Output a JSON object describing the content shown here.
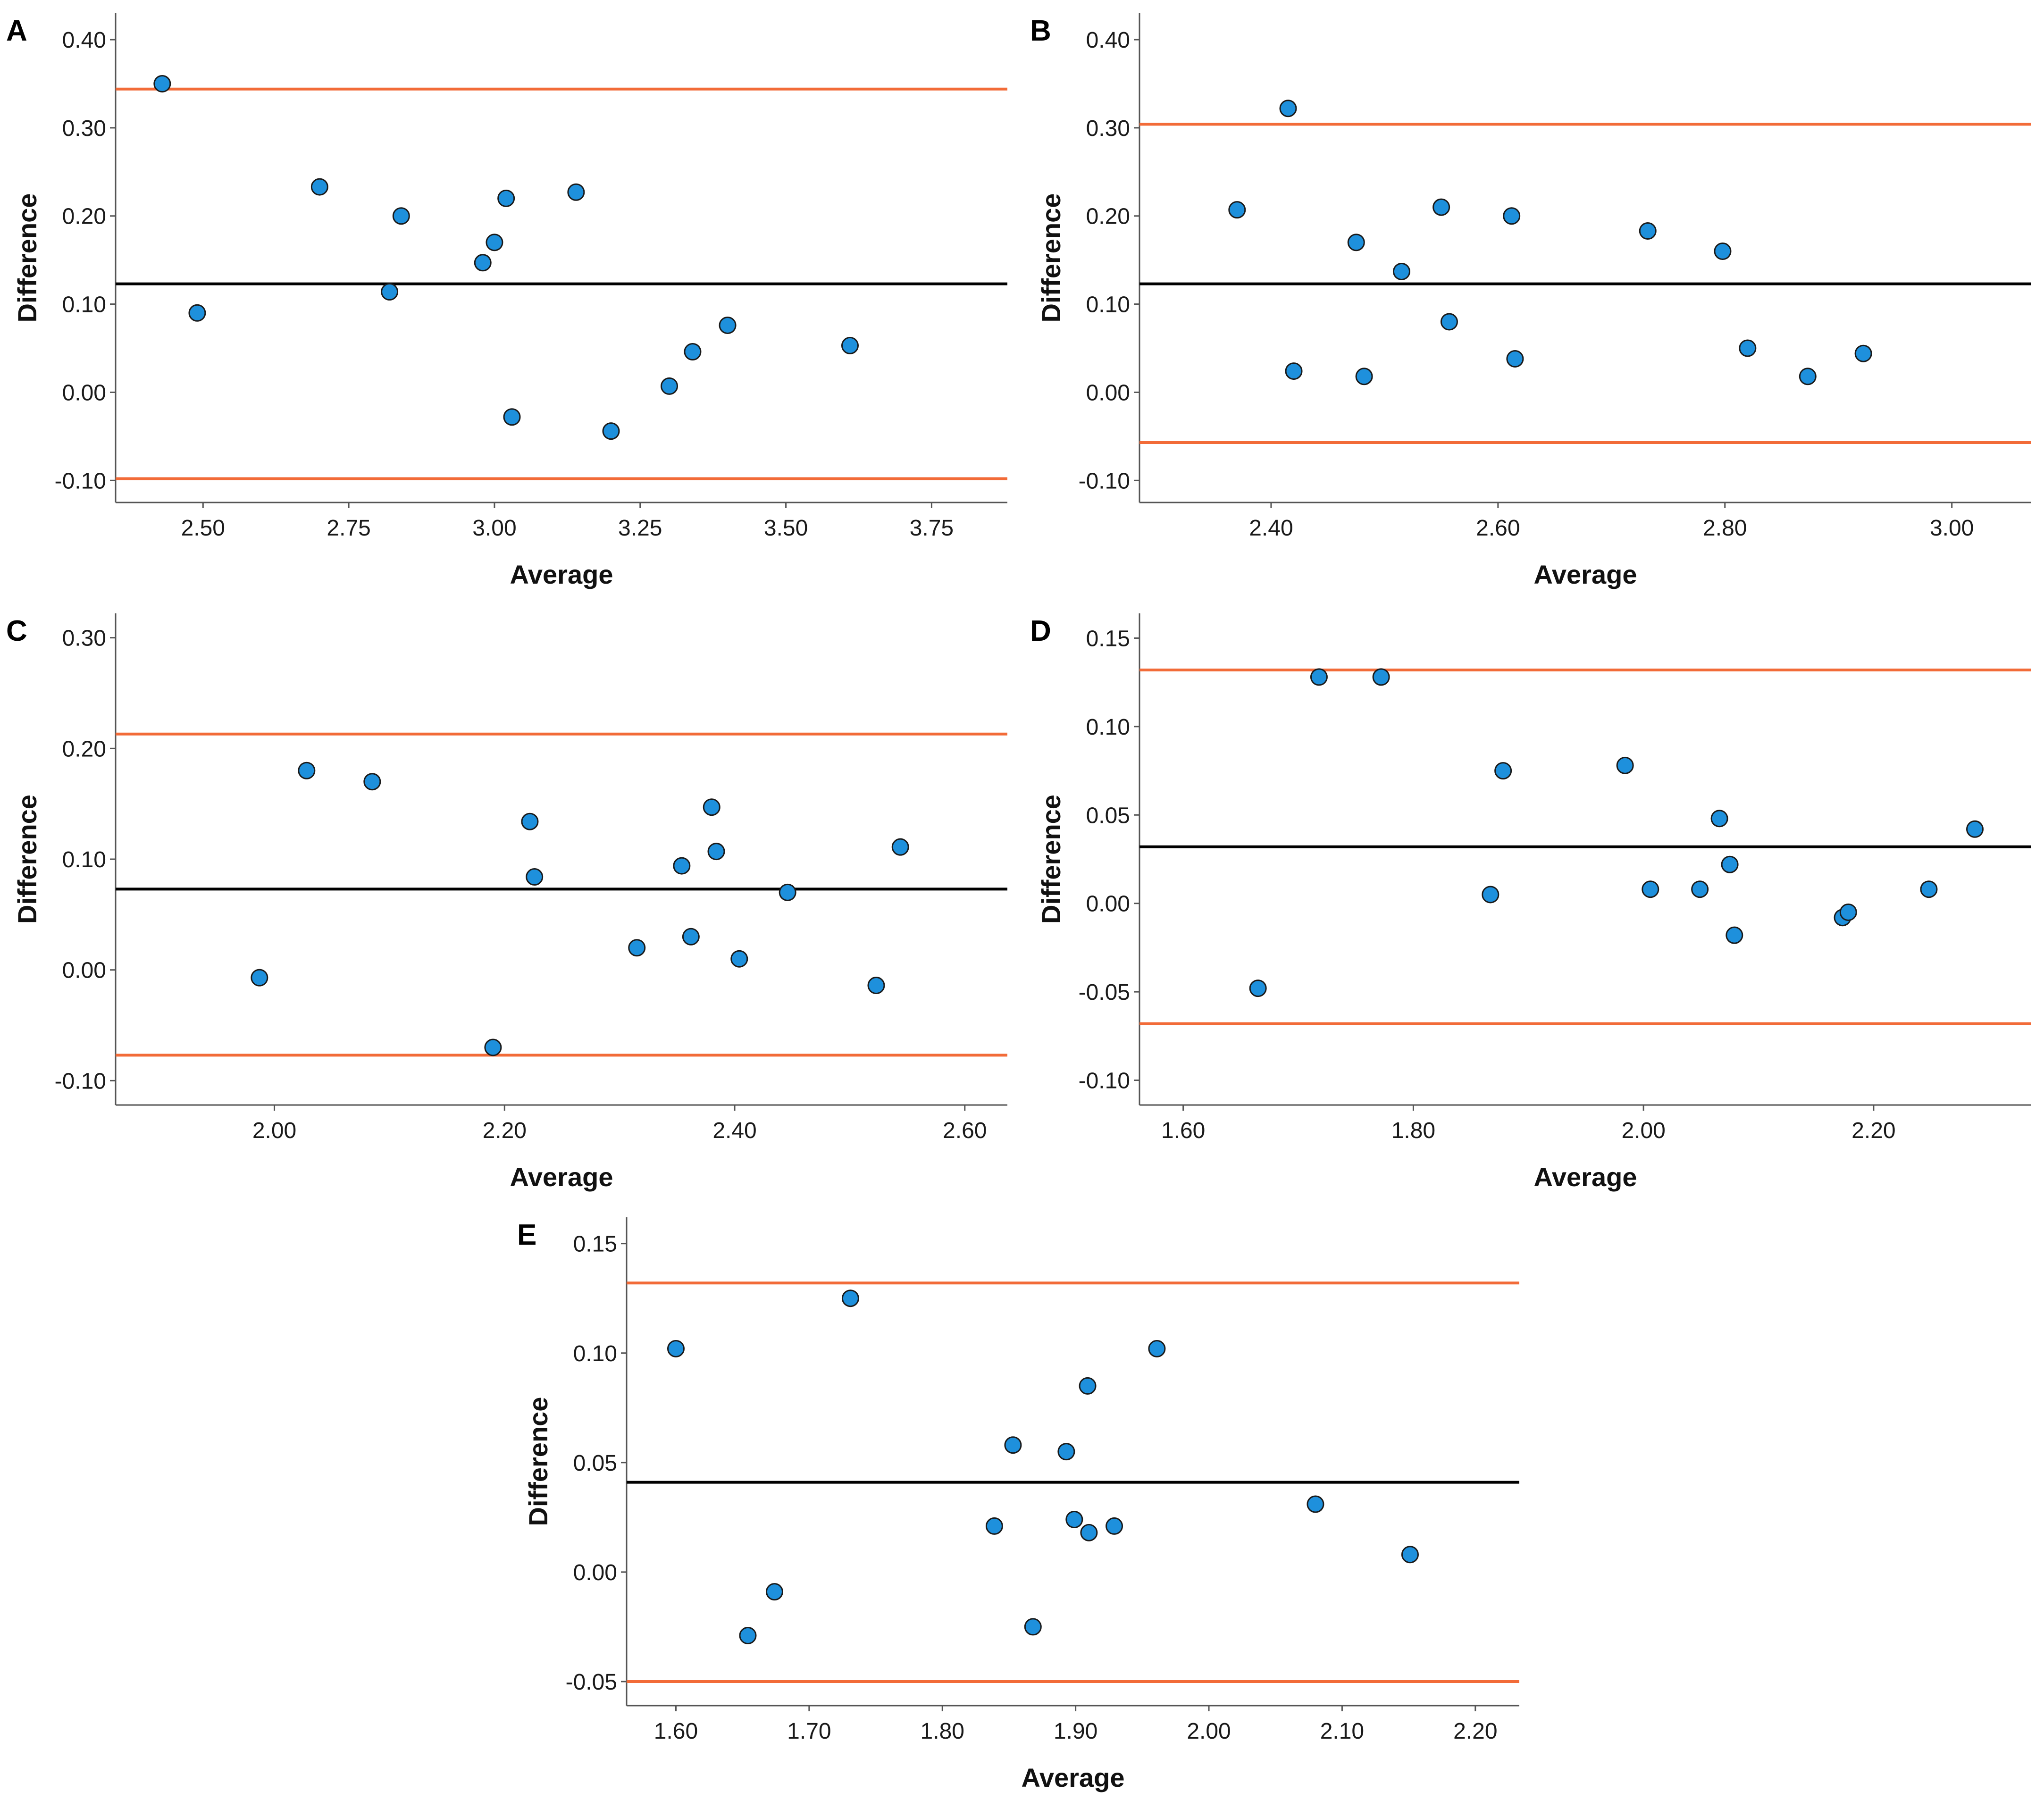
{
  "colors": {
    "point_fill": "#1e90dc",
    "point_stroke": "#1a1a1a",
    "mean_line": "#000000",
    "limit_line": "#f26b38",
    "axis": "#555555"
  },
  "chart_data": [
    {
      "panel": "A",
      "type": "scatter",
      "xlabel": "Average",
      "ylabel": "Difference",
      "xlim": [
        2.35,
        3.88
      ],
      "ylim": [
        -0.125,
        0.43
      ],
      "xticks": [
        2.5,
        2.75,
        3.0,
        3.25,
        3.5,
        3.75
      ],
      "xtick_labels": [
        "2.50",
        "2.75",
        "3.00",
        "3.25",
        "3.50",
        "3.75"
      ],
      "yticks": [
        -0.1,
        0.0,
        0.1,
        0.2,
        0.3,
        0.4
      ],
      "ytick_labels": [
        "-0.10",
        "0.00",
        "0.10",
        "0.20",
        "0.30",
        "0.40"
      ],
      "mean": 0.123,
      "upper_limit": 0.344,
      "lower_limit": -0.098,
      "points": [
        {
          "x": 2.43,
          "y": 0.35
        },
        {
          "x": 2.49,
          "y": 0.09
        },
        {
          "x": 2.7,
          "y": 0.233
        },
        {
          "x": 2.82,
          "y": 0.114
        },
        {
          "x": 2.84,
          "y": 0.2
        },
        {
          "x": 2.98,
          "y": 0.147
        },
        {
          "x": 3.0,
          "y": 0.17
        },
        {
          "x": 3.02,
          "y": 0.22
        },
        {
          "x": 3.03,
          "y": -0.028
        },
        {
          "x": 3.14,
          "y": 0.227
        },
        {
          "x": 3.2,
          "y": -0.044
        },
        {
          "x": 3.3,
          "y": 0.007
        },
        {
          "x": 3.34,
          "y": 0.046
        },
        {
          "x": 3.4,
          "y": 0.076
        },
        {
          "x": 3.61,
          "y": 0.053
        }
      ]
    },
    {
      "panel": "B",
      "type": "scatter",
      "xlabel": "Average",
      "ylabel": "Difference",
      "xlim": [
        2.284,
        3.07
      ],
      "ylim": [
        -0.125,
        0.43
      ],
      "xticks": [
        2.4,
        2.6,
        2.8,
        3.0
      ],
      "xtick_labels": [
        "2.40",
        "2.60",
        "2.80",
        "3.00"
      ],
      "yticks": [
        -0.1,
        0.0,
        0.1,
        0.2,
        0.3,
        0.4
      ],
      "ytick_labels": [
        "-0.10",
        "0.00",
        "0.10",
        "0.20",
        "0.30",
        "0.40"
      ],
      "mean": 0.123,
      "upper_limit": 0.304,
      "lower_limit": -0.057,
      "points": [
        {
          "x": 2.37,
          "y": 0.207
        },
        {
          "x": 2.415,
          "y": 0.322
        },
        {
          "x": 2.42,
          "y": 0.024
        },
        {
          "x": 2.475,
          "y": 0.17
        },
        {
          "x": 2.482,
          "y": 0.018
        },
        {
          "x": 2.515,
          "y": 0.137
        },
        {
          "x": 2.55,
          "y": 0.21
        },
        {
          "x": 2.557,
          "y": 0.08
        },
        {
          "x": 2.612,
          "y": 0.2
        },
        {
          "x": 2.615,
          "y": 0.038
        },
        {
          "x": 2.732,
          "y": 0.183
        },
        {
          "x": 2.798,
          "y": 0.16
        },
        {
          "x": 2.82,
          "y": 0.05
        },
        {
          "x": 2.873,
          "y": 0.018
        },
        {
          "x": 2.922,
          "y": 0.044
        }
      ]
    },
    {
      "panel": "C",
      "type": "scatter",
      "xlabel": "Average",
      "ylabel": "Difference",
      "xlim": [
        1.862,
        2.637
      ],
      "ylim": [
        -0.122,
        0.322
      ],
      "xticks": [
        2.0,
        2.2,
        2.4,
        2.6
      ],
      "xtick_labels": [
        "2.00",
        "2.20",
        "2.40",
        "2.60"
      ],
      "yticks": [
        -0.1,
        0.0,
        0.1,
        0.2,
        0.3
      ],
      "ytick_labels": [
        "-0.10",
        "0.00",
        "0.10",
        "0.20",
        "0.30"
      ],
      "mean": 0.073,
      "upper_limit": 0.213,
      "lower_limit": -0.077,
      "points": [
        {
          "x": 1.987,
          "y": -0.007
        },
        {
          "x": 2.028,
          "y": 0.18
        },
        {
          "x": 2.085,
          "y": 0.17
        },
        {
          "x": 2.19,
          "y": -0.07
        },
        {
          "x": 2.222,
          "y": 0.134
        },
        {
          "x": 2.226,
          "y": 0.084
        },
        {
          "x": 2.315,
          "y": 0.02
        },
        {
          "x": 2.354,
          "y": 0.094
        },
        {
          "x": 2.362,
          "y": 0.03
        },
        {
          "x": 2.38,
          "y": 0.147
        },
        {
          "x": 2.384,
          "y": 0.107
        },
        {
          "x": 2.404,
          "y": 0.01
        },
        {
          "x": 2.446,
          "y": 0.07
        },
        {
          "x": 2.523,
          "y": -0.014
        },
        {
          "x": 2.544,
          "y": 0.111
        }
      ]
    },
    {
      "panel": "D",
      "type": "scatter",
      "xlabel": "Average",
      "ylabel": "Difference",
      "xlim": [
        1.562,
        2.337
      ],
      "ylim": [
        -0.114,
        0.164
      ],
      "xticks": [
        1.6,
        1.8,
        2.0,
        2.2
      ],
      "xtick_labels": [
        "1.60",
        "1.80",
        "2.00",
        "2.20"
      ],
      "yticks": [
        -0.1,
        -0.05,
        0.0,
        0.05,
        0.1,
        0.15
      ],
      "ytick_labels": [
        "-0.10",
        "-0.05",
        "0.00",
        "0.05",
        "0.10",
        "0.15"
      ],
      "mean": 0.032,
      "upper_limit": 0.132,
      "lower_limit": -0.068,
      "points": [
        {
          "x": 1.665,
          "y": -0.048
        },
        {
          "x": 1.718,
          "y": 0.128
        },
        {
          "x": 1.772,
          "y": 0.128
        },
        {
          "x": 1.867,
          "y": 0.005
        },
        {
          "x": 1.878,
          "y": 0.075
        },
        {
          "x": 1.984,
          "y": 0.078
        },
        {
          "x": 2.006,
          "y": 0.008
        },
        {
          "x": 2.049,
          "y": 0.008
        },
        {
          "x": 2.066,
          "y": 0.048
        },
        {
          "x": 2.075,
          "y": 0.022
        },
        {
          "x": 2.079,
          "y": -0.018
        },
        {
          "x": 2.173,
          "y": -0.008
        },
        {
          "x": 2.178,
          "y": -0.005
        },
        {
          "x": 2.248,
          "y": 0.008
        },
        {
          "x": 2.288,
          "y": 0.042
        }
      ]
    },
    {
      "panel": "E",
      "type": "scatter",
      "xlabel": "Average",
      "ylabel": "Difference",
      "xlim": [
        1.563,
        2.233
      ],
      "ylim": [
        -0.061,
        0.162
      ],
      "xticks": [
        1.6,
        1.7,
        1.8,
        1.9,
        2.0,
        2.1,
        2.2
      ],
      "xtick_labels": [
        "1.60",
        "1.70",
        "1.80",
        "1.90",
        "2.00",
        "2.10",
        "2.20"
      ],
      "yticks": [
        -0.05,
        0.0,
        0.05,
        0.1,
        0.15
      ],
      "ytick_labels": [
        "-0.05",
        "0.00",
        "0.05",
        "0.10",
        "0.15"
      ],
      "mean": 0.041,
      "upper_limit": 0.132,
      "lower_limit": -0.05,
      "points": [
        {
          "x": 1.6,
          "y": 0.102
        },
        {
          "x": 1.654,
          "y": -0.029
        },
        {
          "x": 1.674,
          "y": -0.009
        },
        {
          "x": 1.731,
          "y": 0.125
        },
        {
          "x": 1.839,
          "y": 0.021
        },
        {
          "x": 1.853,
          "y": 0.058
        },
        {
          "x": 1.868,
          "y": -0.025
        },
        {
          "x": 1.893,
          "y": 0.055
        },
        {
          "x": 1.899,
          "y": 0.024
        },
        {
          "x": 1.909,
          "y": 0.085
        },
        {
          "x": 1.91,
          "y": 0.018
        },
        {
          "x": 1.929,
          "y": 0.021
        },
        {
          "x": 1.961,
          "y": 0.102
        },
        {
          "x": 2.08,
          "y": 0.031
        },
        {
          "x": 2.151,
          "y": 0.008
        }
      ]
    }
  ]
}
